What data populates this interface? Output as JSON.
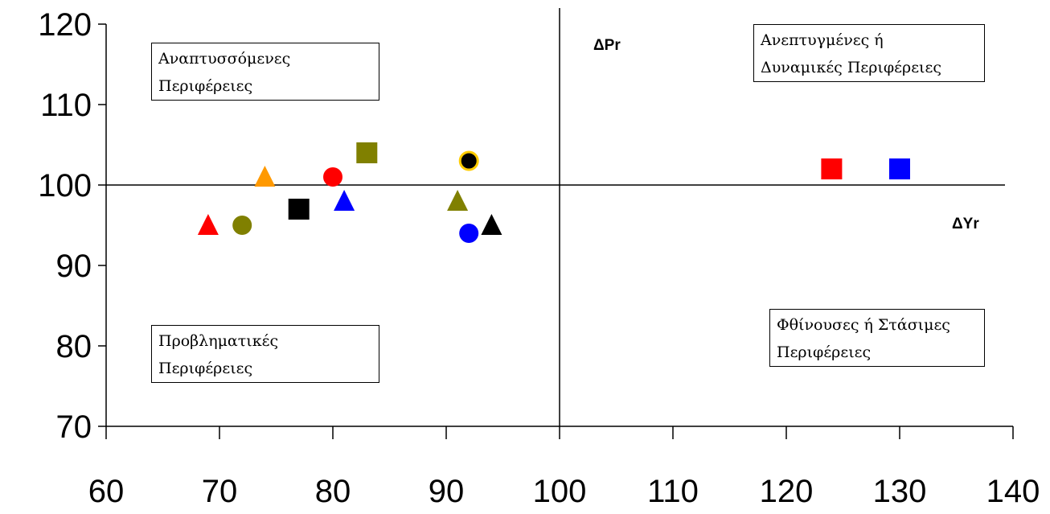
{
  "chart_data": {
    "type": "scatter",
    "title": "",
    "xlabel": "ΔYr",
    "ylabel": "ΔPr",
    "xlim": [
      60,
      140
    ],
    "ylim": [
      70,
      120
    ],
    "xticks": [
      "60",
      "70",
      "80",
      "90",
      "100",
      "110",
      "120",
      "130",
      "140"
    ],
    "yticks": [
      "70",
      "80",
      "90",
      "100",
      "110",
      "120"
    ],
    "reference_lines": {
      "x": 100,
      "y": 100
    },
    "quadrant_labels": {
      "top_left": [
        "Αναπτυσσόμενες",
        "Περιφέρειες"
      ],
      "top_right": [
        "Ανεπτυγμένες ή",
        "Δυναμικές  Περιφέρειες"
      ],
      "bottom_left": [
        "Προβληματικές",
        "Περιφέρειες"
      ],
      "bottom_right": [
        "Φθίνουσες ή Στάσιμες",
        "Περιφέρειες"
      ]
    },
    "points": [
      {
        "x": 69,
        "y": 95,
        "shape": "triangle",
        "color": "#ff0000"
      },
      {
        "x": 72,
        "y": 95,
        "shape": "circle",
        "color": "#808000"
      },
      {
        "x": 74,
        "y": 101,
        "shape": "triangle",
        "color": "#ff9900"
      },
      {
        "x": 77,
        "y": 97,
        "shape": "square",
        "color": "#000000"
      },
      {
        "x": 80,
        "y": 101,
        "shape": "circle",
        "color": "#ff0000"
      },
      {
        "x": 81,
        "y": 98,
        "shape": "triangle",
        "color": "#0000ff"
      },
      {
        "x": 83,
        "y": 104,
        "shape": "square",
        "color": "#808000"
      },
      {
        "x": 91,
        "y": 98,
        "shape": "triangle",
        "color": "#808000"
      },
      {
        "x": 92,
        "y": 103,
        "shape": "circle-outlined",
        "color": "#000000",
        "stroke": "#ffcc00"
      },
      {
        "x": 92,
        "y": 94,
        "shape": "circle",
        "color": "#0000ff"
      },
      {
        "x": 94,
        "y": 95,
        "shape": "triangle",
        "color": "#000000"
      },
      {
        "x": 124,
        "y": 102,
        "shape": "square",
        "color": "#ff0000"
      },
      {
        "x": 130,
        "y": 102,
        "shape": "square",
        "color": "#0000ff"
      }
    ]
  }
}
